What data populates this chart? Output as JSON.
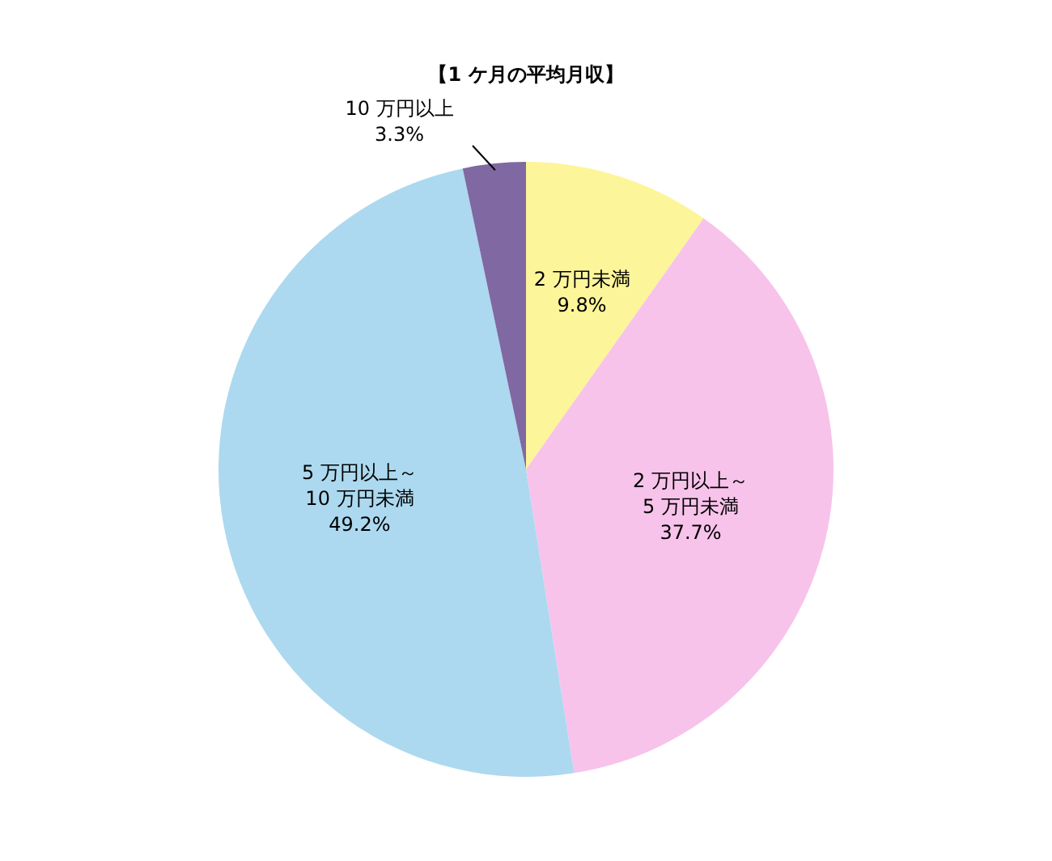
{
  "chart_data": {
    "type": "pie",
    "title": "【1 ケ月の平均月収】",
    "categories": [
      "2 万円未満",
      "2 万円以上～5 万円未満",
      "5 万円以上～10 万円未満",
      "10 万円以上"
    ],
    "values": [
      9.8,
      37.7,
      49.2,
      3.3
    ],
    "value_labels": [
      "9.8%",
      "37.7%",
      "49.2%",
      "3.3%"
    ],
    "colors": [
      "#fdf59a",
      "#f7c3ea",
      "#acd9ef",
      "#8068a3"
    ],
    "legend": false
  }
}
